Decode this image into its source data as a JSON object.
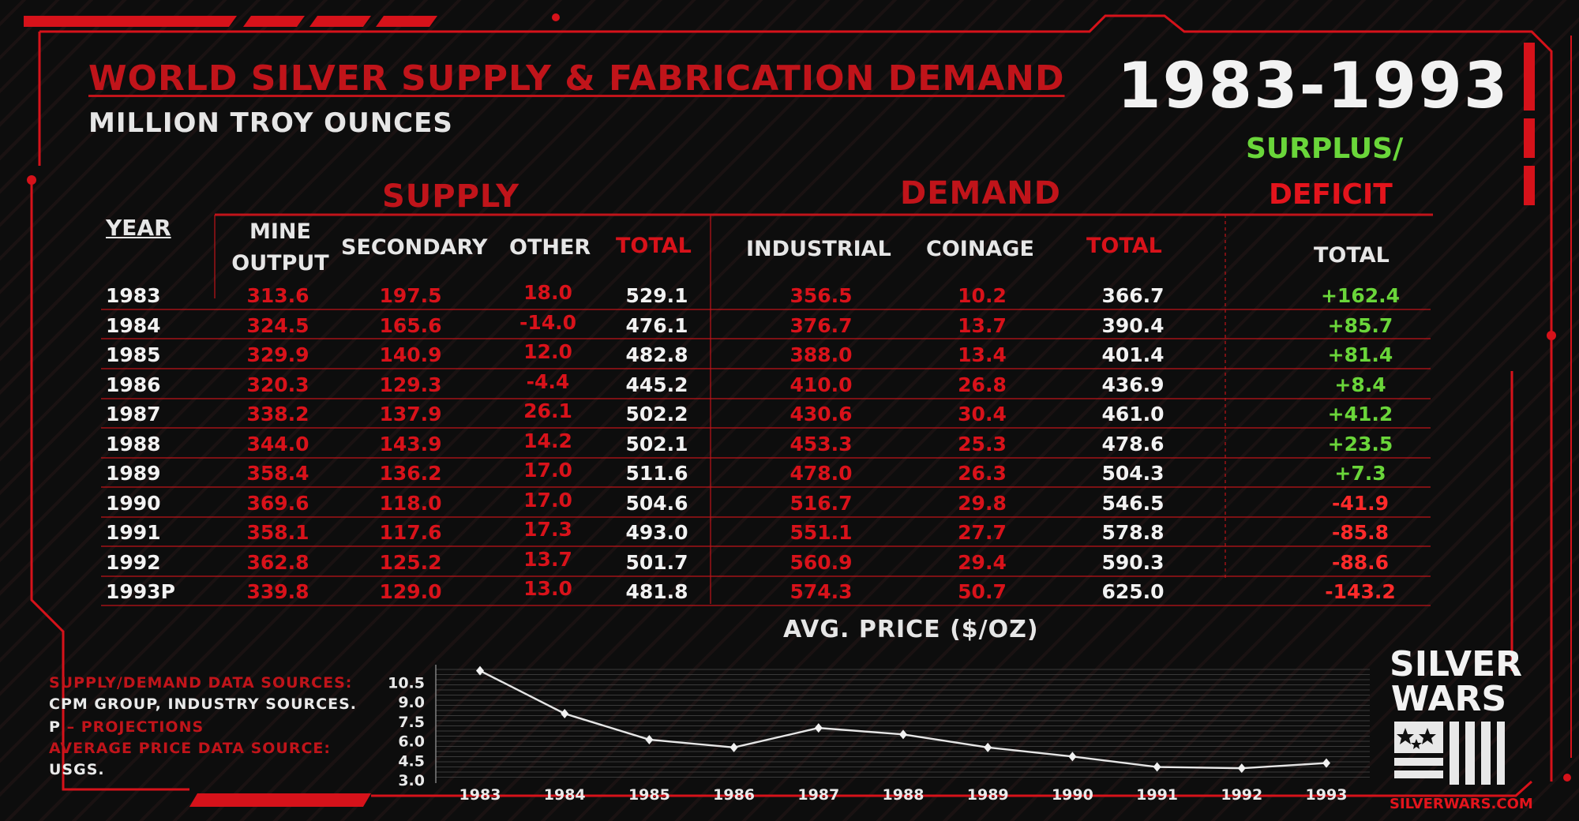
{
  "header": {
    "range": "1983-1993"
  },
  "table": {
    "supply_label": "SUPPLY",
    "demand_label": "DEMAND",
    "surplus_label": "SURPLUS/",
    "deficit_label": "DEFICIT",
    "columns": [
      "YEAR",
      "MINE OUTPUT",
      "SECONDARY",
      "OTHER",
      "TOTAL",
      "INDUSTRIAL",
      "COINAGE",
      "TOTAL",
      "TOTAL"
    ]
  },
  "notes": {
    "sources_label": "SUPPLY/DEMAND DATA SOURCES:",
    "sources_text": "CPM GROUP, INDUSTRY SOURCES.",
    "projection_key": "P",
    "projection_sep": "–",
    "projection_text": "PROJECTIONS",
    "price_source_label": "AVERAGE PRICE DATA SOURCE:",
    "price_source_text": "USGS."
  },
  "brand": {
    "line1": "SILVER",
    "line2": "WARS",
    "url": "SILVERWARS.COM"
  },
  "colors": {
    "accent": "#c0141a",
    "surplus": "#6ad63a",
    "deficit": "#ff2a2a",
    "text": "#f2f2f2"
  },
  "chart_data": [
    {
      "type": "table",
      "title": "WORLD SILVER SUPPLY & FABRICATION DEMAND",
      "subtitle": "MILLION TROY OUNCES",
      "columns": [
        "YEAR",
        "MINE OUTPUT",
        "SECONDARY",
        "OTHER",
        "TOTAL",
        "INDUSTRIAL",
        "COINAGE",
        "TOTAL",
        "TOTAL"
      ],
      "rows": [
        [
          "1983",
          "313.6",
          "197.5",
          "18.0",
          "529.1",
          "356.5",
          "10.2",
          "366.7",
          "+162.4"
        ],
        [
          "1984",
          "324.5",
          "165.6",
          "-14.0",
          "476.1",
          "376.7",
          "13.7",
          "390.4",
          "+85.7"
        ],
        [
          "1985",
          "329.9",
          "140.9",
          "12.0",
          "482.8",
          "388.0",
          "13.4",
          "401.4",
          "+81.4"
        ],
        [
          "1986",
          "320.3",
          "129.3",
          "-4.4",
          "445.2",
          "410.0",
          "26.8",
          "436.9",
          "+8.4"
        ],
        [
          "1987",
          "338.2",
          "137.9",
          "26.1",
          "502.2",
          "430.6",
          "30.4",
          "461.0",
          "+41.2"
        ],
        [
          "1988",
          "344.0",
          "143.9",
          "14.2",
          "502.1",
          "453.3",
          "25.3",
          "478.6",
          "+23.5"
        ],
        [
          "1989",
          "358.4",
          "136.2",
          "17.0",
          "511.6",
          "478.0",
          "26.3",
          "504.3",
          "+7.3"
        ],
        [
          "1990",
          "369.6",
          "118.0",
          "17.0",
          "504.6",
          "516.7",
          "29.8",
          "546.5",
          "-41.9"
        ],
        [
          "1991",
          "358.1",
          "117.6",
          "17.3",
          "493.0",
          "551.1",
          "27.7",
          "578.8",
          "-85.8"
        ],
        [
          "1992",
          "362.8",
          "125.2",
          "13.7",
          "501.7",
          "560.9",
          "29.4",
          "590.3",
          "-88.6"
        ],
        [
          "1993P",
          "339.8",
          "129.0",
          "13.0",
          "481.8",
          "574.3",
          "50.7",
          "625.0",
          "-143.2"
        ]
      ]
    },
    {
      "type": "line",
      "title": "AVG. PRICE ($/OZ)",
      "x": [
        "1983",
        "1984",
        "1985",
        "1986",
        "1987",
        "1988",
        "1989",
        "1990",
        "1991",
        "1992",
        "1993"
      ],
      "y": [
        11.4,
        8.1,
        6.1,
        5.5,
        7.0,
        6.5,
        5.5,
        4.8,
        4.0,
        3.9,
        4.3
      ],
      "yticks": [
        "10.5",
        "9.0",
        "7.5",
        "6.0",
        "4.5",
        "3.0"
      ],
      "ylim": [
        3.0,
        11.5
      ],
      "grid": true
    }
  ]
}
